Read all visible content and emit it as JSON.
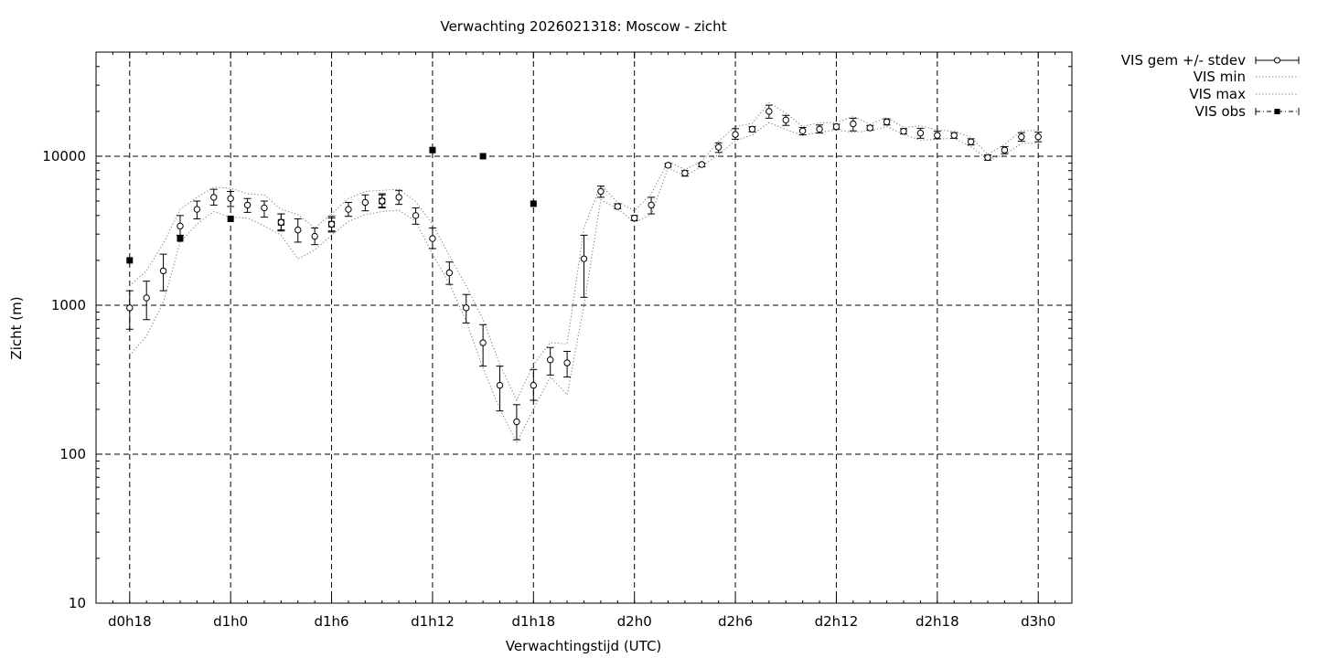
{
  "chart_data": {
    "type": "line",
    "title": "Verwachting 2026021318: Moscow - zicht",
    "xlabel": "Verwachtingstijd (UTC)",
    "ylabel": "Zicht (m)",
    "yscale": "log",
    "ylim": [
      10,
      50000
    ],
    "xlim": [
      "d0h16",
      "d3h2"
    ],
    "grid": true,
    "legend_position": "outside-top-right",
    "x_ticks": [
      "d0h18",
      "d1h0",
      "d1h6",
      "d1h12",
      "d1h18",
      "d2h0",
      "d2h6",
      "d2h12",
      "d2h18",
      "d3h0"
    ],
    "y_ticks": [
      "10",
      "100",
      "1000",
      "10000"
    ],
    "legend": [
      "VIS gem +/- stdev",
      "VIS min",
      "VIS max",
      "VIS obs"
    ],
    "x": [
      "d0h18",
      "d0h19",
      "d0h20",
      "d0h21",
      "d0h22",
      "d0h23",
      "d1h0",
      "d1h1",
      "d1h2",
      "d1h3",
      "d1h4",
      "d1h5",
      "d1h6",
      "d1h7",
      "d1h8",
      "d1h9",
      "d1h10",
      "d1h11",
      "d1h12",
      "d1h13",
      "d1h14",
      "d1h15",
      "d1h16",
      "d1h17",
      "d1h18",
      "d1h19",
      "d1h20",
      "d1h21",
      "d1h22",
      "d1h23",
      "d2h0",
      "d2h1",
      "d2h2",
      "d2h3",
      "d2h4",
      "d2h5",
      "d2h6",
      "d2h7",
      "d2h8",
      "d2h9",
      "d2h10",
      "d2h11",
      "d2h12",
      "d2h13",
      "d2h14",
      "d2h15",
      "d2h16",
      "d2h17",
      "d2h18",
      "d2h19",
      "d2h20",
      "d2h21",
      "d2h22",
      "d2h23",
      "d3h0"
    ],
    "series": [
      {
        "name": "VIS gem +/- stdev",
        "values": [
          960,
          1120,
          1700,
          3400,
          4400,
          5300,
          5200,
          4700,
          4500,
          3600,
          3200,
          2900,
          3500,
          4400,
          4900,
          5000,
          5300,
          4000,
          2800,
          1650,
          960,
          560,
          290,
          165,
          290,
          430,
          410,
          2050,
          5800,
          4600,
          3850,
          4700,
          8700,
          7700,
          8800,
          11500,
          14000,
          15200,
          20000,
          17500,
          14800,
          15200,
          15800,
          16500,
          15500,
          17000,
          14700,
          14300,
          13800,
          13800,
          12500,
          9800,
          11000,
          13500,
          13500
        ],
        "stdev_low": [
          690,
          800,
          1250,
          2950,
          3800,
          4700,
          4600,
          4200,
          3900,
          3150,
          2650,
          2550,
          3100,
          3950,
          4300,
          4500,
          4750,
          3500,
          2400,
          1380,
          760,
          390,
          195,
          125,
          230,
          340,
          330,
          1130,
          5300,
          4450,
          3700,
          4100,
          8450,
          7350,
          8500,
          10600,
          13000,
          14600,
          18000,
          16100,
          13900,
          14300,
          15200,
          14800,
          15000,
          16200,
          14100,
          13200,
          13100,
          13200,
          11900,
          9400,
          10400,
          12600,
          12500
        ],
        "stdev_high": [
          1250,
          1450,
          2200,
          4000,
          5000,
          6000,
          5800,
          5200,
          5000,
          4100,
          3800,
          3300,
          3950,
          4900,
          5500,
          5600,
          5900,
          4500,
          3300,
          1950,
          1180,
          740,
          390,
          215,
          370,
          520,
          490,
          2950,
          6300,
          4800,
          4000,
          5300,
          8950,
          8000,
          9000,
          12300,
          15300,
          15800,
          22000,
          18800,
          15600,
          16200,
          16400,
          18000,
          16100,
          17800,
          15300,
          15400,
          14700,
          14400,
          13100,
          10200,
          11600,
          14400,
          14500
        ]
      },
      {
        "name": "VIS min",
        "values": [
          460,
          620,
          1050,
          2650,
          3500,
          4250,
          3900,
          3850,
          3400,
          2950,
          2050,
          2350,
          2950,
          3650,
          4050,
          4250,
          4350,
          3650,
          2200,
          1400,
          780,
          380,
          200,
          120,
          200,
          330,
          250,
          1000,
          5100,
          4450,
          3600,
          4050,
          8350,
          7400,
          8500,
          10300,
          12700,
          13900,
          16800,
          15100,
          13800,
          14500,
          15000,
          14500,
          14800,
          15800,
          14000,
          12800,
          13000,
          13200,
          11600,
          9500,
          10200,
          12200,
          12200
        ]
      },
      {
        "name": "VIS max",
        "values": [
          1350,
          1700,
          2600,
          4400,
          5300,
          6200,
          6100,
          5600,
          5500,
          4400,
          4050,
          3300,
          4100,
          5200,
          5800,
          5900,
          6000,
          4950,
          3500,
          2150,
          1350,
          800,
          400,
          230,
          400,
          560,
          550,
          3300,
          6400,
          4900,
          4300,
          5600,
          9200,
          8150,
          9200,
          12600,
          15800,
          16600,
          22800,
          19500,
          15800,
          16800,
          16800,
          18500,
          16400,
          18200,
          15600,
          16000,
          15000,
          14700,
          13400,
          10300,
          12000,
          14800,
          14900
        ]
      },
      {
        "name": "VIS obs",
        "x": [
          "d0h18",
          "d0h21",
          "d1h0",
          "d1h3",
          "d1h6",
          "d1h9",
          "d1h12",
          "d1h15",
          "d1h18"
        ],
        "values": [
          2000,
          2800,
          3800,
          3600,
          3500,
          5000,
          11000,
          10000,
          4800
        ],
        "stdev_low": [
          null,
          null,
          null,
          3200,
          3150,
          4550,
          null,
          null,
          null
        ],
        "stdev_high": [
          null,
          null,
          null,
          4100,
          3850,
          5500,
          null,
          null,
          null
        ]
      }
    ]
  }
}
